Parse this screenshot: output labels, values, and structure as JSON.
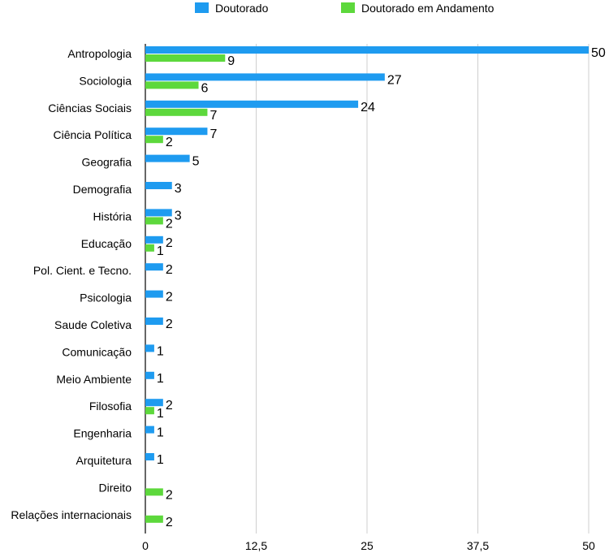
{
  "chart_data": {
    "type": "bar",
    "orientation": "horizontal",
    "categories": [
      "Antropologia",
      "Sociologia",
      "Ciências Sociais",
      "Ciência Política",
      "Geografia",
      "Demografia",
      "História",
      "Educação",
      "Pol. Cient. e Tecno.",
      "Psicologia",
      "Saude Coletiva",
      "Comunicação",
      "Meio Ambiente",
      "Filosofia",
      "Engenharia",
      "Arquitetura",
      "Direito",
      "Relações internacionais"
    ],
    "series": [
      {
        "name": "Doutorado",
        "color": "#1E9BF0",
        "values": [
          50,
          27,
          24,
          7,
          5,
          3,
          3,
          2,
          2,
          2,
          2,
          1,
          1,
          2,
          1,
          1,
          null,
          null
        ]
      },
      {
        "name": "Doutorado em Andamento",
        "color": "#5DD83C",
        "values": [
          9,
          6,
          7,
          2,
          null,
          null,
          2,
          1,
          null,
          null,
          null,
          null,
          null,
          1,
          null,
          null,
          2,
          2
        ]
      }
    ],
    "xticks": [
      "0",
      "12,5",
      "25",
      "37,5",
      "50"
    ],
    "xlim": [
      0,
      50
    ],
    "grid": true,
    "legend_position": "top",
    "title": "",
    "xlabel": "",
    "ylabel": ""
  }
}
